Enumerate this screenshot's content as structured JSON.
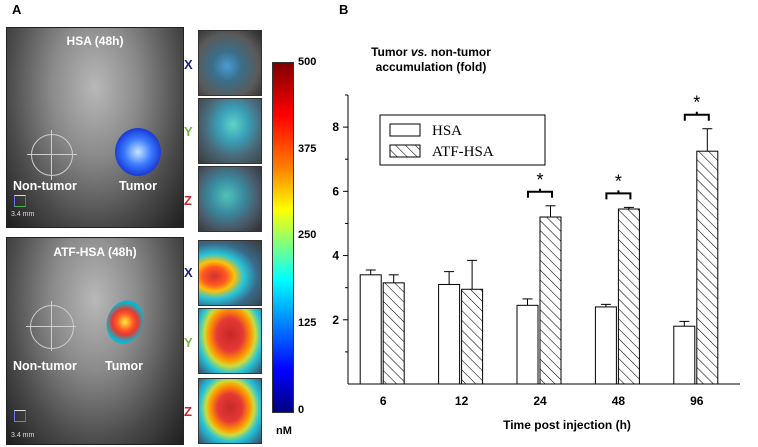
{
  "panel_a": {
    "label": "A",
    "top_image": {
      "title": "HSA (48h)",
      "non_tumor_label": "Non-tumor",
      "tumor_label": "Tumor",
      "scale": "3.4 mm"
    },
    "bottom_image": {
      "title": "ATF-HSA (48h)",
      "non_tumor_label": "Non-tumor",
      "tumor_label": "Tumor",
      "scale": "3.4 mm"
    },
    "axes": [
      {
        "letter": "X",
        "color": "#1a237e"
      },
      {
        "letter": "Y",
        "color": "#7cb342"
      },
      {
        "letter": "Z",
        "color": "#c62828"
      }
    ],
    "colorbar": {
      "ticks": [
        "500",
        "375",
        "250",
        "125",
        "0"
      ],
      "unit": "nM"
    }
  },
  "panel_b": {
    "label": "B"
  },
  "chart_data": {
    "type": "bar",
    "title": "Tumor vs. non-tumor accumulation (fold)",
    "title_line1_pre": "Tumor ",
    "title_line1_em": "vs.",
    "title_line1_post": " non-tumor",
    "title_line2": "accumulation (fold)",
    "xlabel": "Time post injection (h)",
    "ylabel": "",
    "categories": [
      "6",
      "12",
      "24",
      "48",
      "96"
    ],
    "ylim": [
      0,
      9
    ],
    "yticks": [
      "2",
      "4",
      "6",
      "8"
    ],
    "series": [
      {
        "name": "HSA",
        "pattern": "open",
        "values": [
          3.4,
          3.1,
          2.45,
          2.4,
          1.8
        ],
        "errors": [
          0.15,
          0.4,
          0.2,
          0.08,
          0.15
        ]
      },
      {
        "name": "ATF-HSA",
        "pattern": "hatched",
        "values": [
          3.15,
          2.95,
          5.2,
          5.45,
          7.25
        ],
        "errors": [
          0.25,
          0.9,
          0.35,
          0.05,
          0.7
        ]
      }
    ],
    "significance": [
      {
        "category": "24",
        "mark": "*"
      },
      {
        "category": "48",
        "mark": "*"
      },
      {
        "category": "96",
        "mark": "*"
      }
    ]
  }
}
